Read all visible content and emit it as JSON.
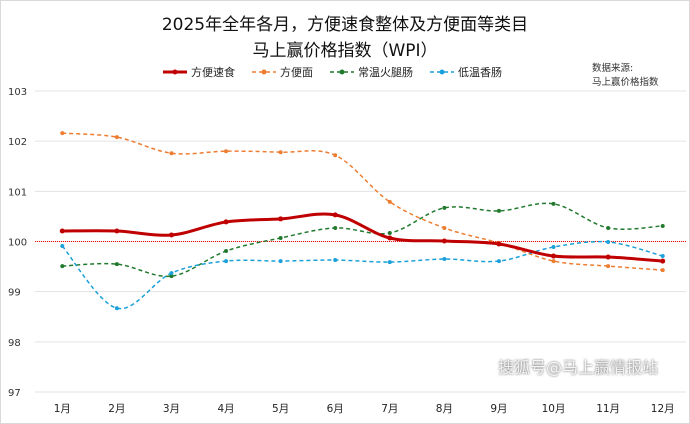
{
  "chart_data": {
    "type": "line",
    "title": "2025年全年各月，方便速食整体及方便面等类目",
    "subtitle": "马上赢价格指数（WPI）",
    "categories": [
      "1月",
      "2月",
      "3月",
      "4月",
      "5月",
      "6月",
      "7月",
      "8月",
      "9月",
      "10月",
      "11月",
      "12月"
    ],
    "ylim": [
      97,
      103
    ],
    "yticks": [
      97,
      98,
      99,
      100,
      101,
      102,
      103
    ],
    "reference_line": 100,
    "legend_position": "top",
    "series": [
      {
        "name": "方便速食",
        "color": "#c00000",
        "width": 3,
        "dash": "",
        "values": [
          100.21,
          100.21,
          100.13,
          100.39,
          100.45,
          100.53,
          100.07,
          100.01,
          99.95,
          99.71,
          99.69,
          99.61
        ]
      },
      {
        "name": "方便面",
        "color": "#ed7d31",
        "width": 1.5,
        "dash": "4,3",
        "values": [
          102.16,
          102.08,
          101.76,
          101.8,
          101.78,
          101.72,
          100.79,
          100.27,
          99.97,
          99.61,
          99.51,
          99.43
        ]
      },
      {
        "name": "常温火腿肠",
        "color": "#217a2e",
        "width": 1.5,
        "dash": "4,3",
        "values": [
          99.51,
          99.55,
          99.31,
          99.81,
          100.07,
          100.27,
          100.17,
          100.67,
          100.61,
          100.75,
          100.27,
          100.31
        ]
      },
      {
        "name": "低温香肠",
        "color": "#1ba1d9",
        "width": 1.5,
        "dash": "4,3",
        "values": [
          99.91,
          98.67,
          99.37,
          99.61,
          99.61,
          99.63,
          99.59,
          99.65,
          99.61,
          99.89,
          99.99,
          99.71
        ]
      }
    ]
  },
  "source": {
    "line1": "数据来源:",
    "line2": "马上赢价格指数"
  },
  "watermark": "搜狐号@马上赢情报站"
}
